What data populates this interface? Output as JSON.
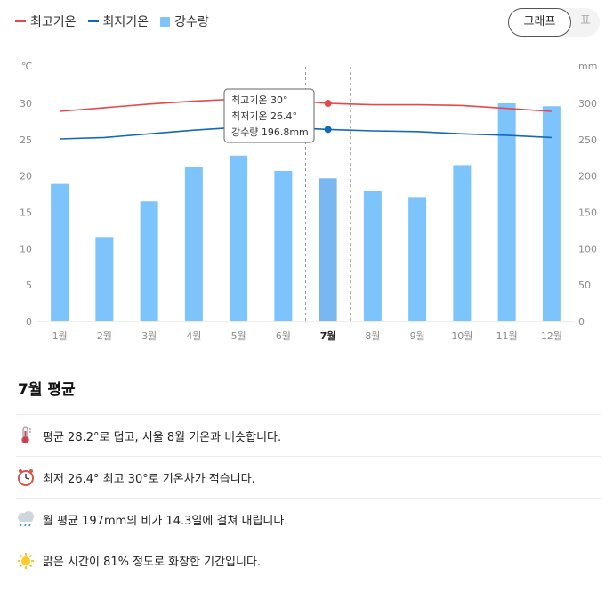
{
  "legend": {
    "max_label": "최고기온",
    "min_label": "최저기온",
    "rain_label": "강수량"
  },
  "toggle": {
    "graph_label": "그래프",
    "table_label": "표"
  },
  "colors": {
    "max_line": "#e8474c",
    "min_line": "#1269b7",
    "bar": "#7cc4fb",
    "bar_selected": "#79b7f0"
  },
  "chart_data": {
    "type": "bar",
    "categories": [
      "1월",
      "2월",
      "3월",
      "4월",
      "5월",
      "6월",
      "7월",
      "8월",
      "9월",
      "10월",
      "11월",
      "12월"
    ],
    "selected_index": 6,
    "left_axis_unit": "℃",
    "right_axis_unit": "mm",
    "left_ticks": [
      0,
      5,
      10,
      15,
      20,
      25,
      30
    ],
    "right_ticks": [
      0,
      50,
      100,
      150,
      200,
      250,
      300
    ],
    "ylim_left": [
      0,
      30
    ],
    "ylim_right": [
      0,
      300
    ],
    "series": [
      {
        "name": "최고기온",
        "kind": "line",
        "axis": "left",
        "values": [
          28.9,
          29.4,
          29.9,
          30.3,
          30.6,
          30.5,
          30.0,
          29.8,
          29.8,
          29.7,
          29.3,
          28.9
        ]
      },
      {
        "name": "최저기온",
        "kind": "line",
        "axis": "left",
        "values": [
          25.1,
          25.3,
          25.8,
          26.3,
          26.7,
          26.7,
          26.4,
          26.2,
          26.1,
          25.8,
          25.6,
          25.3
        ]
      },
      {
        "name": "강수량",
        "kind": "bar",
        "axis": "right",
        "values": [
          189,
          116,
          165,
          213,
          228,
          207,
          196.8,
          179,
          171,
          215,
          300,
          296
        ]
      }
    ],
    "tooltip": {
      "line1": "최고기온 30°",
      "line2": "최저기온 26.4°",
      "line3": "강수량 196.8mm"
    }
  },
  "summary": {
    "title": "7월 평균",
    "items": [
      {
        "icon": "thermometer-icon",
        "text": "평균 28.2°로 덥고, 서울 8월 기온과 비슷합니다."
      },
      {
        "icon": "clock-icon",
        "text": "최저 26.4° 최고 30°로 기온차가 적습니다."
      },
      {
        "icon": "rain-cloud-icon",
        "text": "월 평균 197mm의 비가 14.3일에 걸쳐 내립니다."
      },
      {
        "icon": "sun-icon",
        "text": "맑은 시간이 81% 정도로 화창한 기간입니다."
      }
    ]
  }
}
